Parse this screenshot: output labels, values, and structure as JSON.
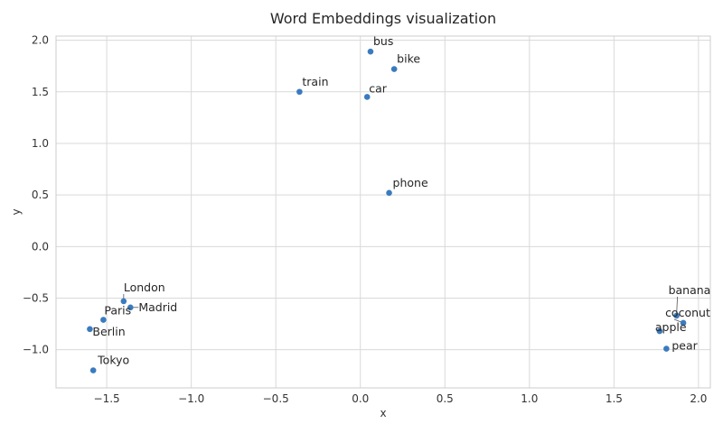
{
  "chart_data": {
    "type": "scatter",
    "title": "Word Embeddings visualization",
    "xlabel": "x",
    "ylabel": "y",
    "xlim": [
      -1.8,
      2.07
    ],
    "ylim": [
      -1.37,
      2.04
    ],
    "xticks": [
      -1.5,
      -1.0,
      -0.5,
      0.0,
      0.5,
      1.0,
      1.5,
      2.0
    ],
    "yticks": [
      -1.0,
      -0.5,
      0.0,
      0.5,
      1.0,
      1.5,
      2.0
    ],
    "xtick_labels": [
      "−1.5",
      "−1.0",
      "−0.5",
      "0.0",
      "0.5",
      "1.0",
      "1.5",
      "2.0"
    ],
    "ytick_labels": [
      "−1.0",
      "−0.5",
      "0.0",
      "0.5",
      "1.0",
      "1.5",
      "2.0"
    ],
    "grid": true,
    "marker_color": "#3a7bbf",
    "points": [
      {
        "label": "bus",
        "x": 0.06,
        "y": 1.89
      },
      {
        "label": "bike",
        "x": 0.2,
        "y": 1.72
      },
      {
        "label": "train",
        "x": -0.36,
        "y": 1.5
      },
      {
        "label": "car",
        "x": 0.04,
        "y": 1.45
      },
      {
        "label": "phone",
        "x": 0.17,
        "y": 0.52
      },
      {
        "label": "London",
        "x": -1.4,
        "y": -0.53
      },
      {
        "label": "Madrid",
        "x": -1.36,
        "y": -0.59
      },
      {
        "label": "Paris",
        "x": -1.52,
        "y": -0.71
      },
      {
        "label": "Berlin",
        "x": -1.6,
        "y": -0.8
      },
      {
        "label": "Tokyo",
        "x": -1.58,
        "y": -1.2
      },
      {
        "label": "banana",
        "x": 1.87,
        "y": -0.67
      },
      {
        "label": "coconut",
        "x": 1.91,
        "y": -0.74
      },
      {
        "label": "apple",
        "x": 1.77,
        "y": -0.82
      },
      {
        "label": "pear",
        "x": 1.81,
        "y": -0.99
      }
    ]
  }
}
